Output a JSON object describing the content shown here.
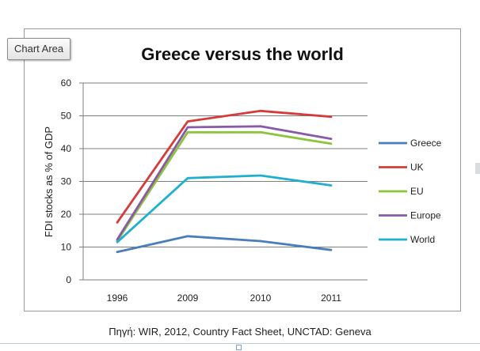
{
  "tooltip": {
    "label": "Chart Area"
  },
  "source_note": "Πηγή: WIR, 2012, Country Fact Sheet, UNCTAD: Geneva",
  "chart_data": {
    "type": "line",
    "title": "Greece versus the world",
    "xlabel": "",
    "ylabel": "FDI stocks as % of GDP",
    "categories": [
      "1996",
      "2009",
      "2010",
      "2011"
    ],
    "ylim": [
      0,
      60
    ],
    "yticks": [
      0,
      10,
      20,
      30,
      40,
      50,
      60
    ],
    "grid": true,
    "legend_position": "right",
    "series": [
      {
        "name": "Greece",
        "color": "#4a7ebb",
        "values": [
          8.5,
          13.3,
          11.8,
          9.1
        ]
      },
      {
        "name": "UK",
        "color": "#d63b3b",
        "values": [
          17.5,
          48.3,
          51.5,
          49.7
        ]
      },
      {
        "name": "EU",
        "color": "#8cc43c",
        "values": [
          11.8,
          45.0,
          45.0,
          41.5
        ]
      },
      {
        "name": "Europe",
        "color": "#8a5aa8",
        "values": [
          12.3,
          46.5,
          46.8,
          43.0
        ]
      },
      {
        "name": "World",
        "color": "#1fb0d0",
        "values": [
          11.5,
          31.0,
          31.8,
          28.8
        ]
      }
    ]
  }
}
